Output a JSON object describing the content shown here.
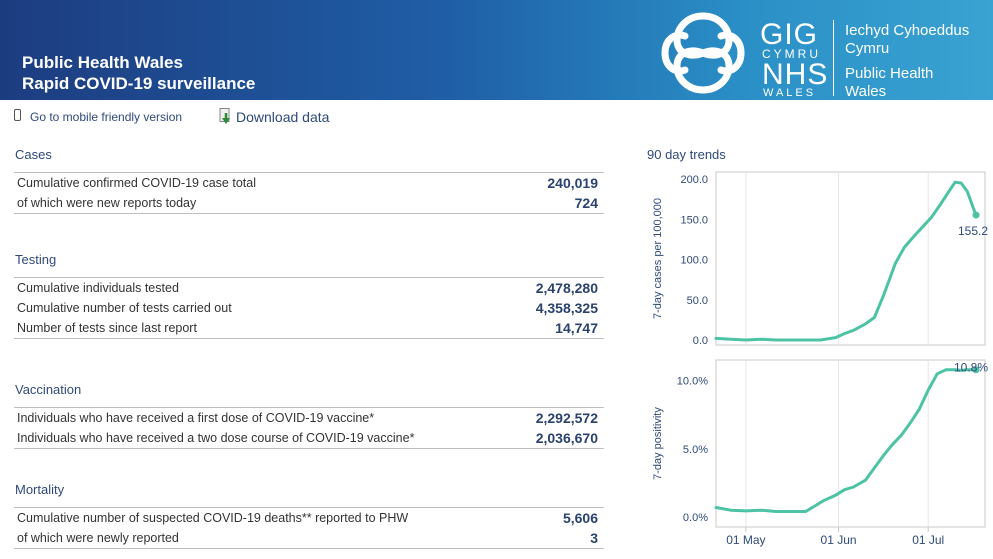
{
  "header": {
    "title_line1": "Public Health Wales",
    "title_line2": "Rapid COVID-19 surveillance",
    "logo": {
      "gig": "GIG",
      "cymru": "CYMRU",
      "nhs": "NHS",
      "wales": "WALES",
      "org_welsh_1": "Iechyd Cyhoeddus",
      "org_welsh_2": "Cymru",
      "org_english_1": "Public Health",
      "org_english_2": "Wales"
    }
  },
  "toplinks": {
    "mobile": "Go to mobile friendly version",
    "download": "Download data"
  },
  "cases": {
    "title": "Cases",
    "rows": [
      {
        "label": "Cumulative confirmed COVID-19 case total",
        "value": "240,019"
      },
      {
        "label": "of which were new reports today",
        "value": "724"
      }
    ]
  },
  "testing": {
    "title": "Testing",
    "rows": [
      {
        "label": "Cumulative individuals tested",
        "value": "2,478,280"
      },
      {
        "label": "Cumulative number of tests carried out",
        "value": "4,358,325"
      },
      {
        "label": "Number of tests since last report",
        "value": "14,747"
      }
    ]
  },
  "vaccination": {
    "title": "Vaccination",
    "rows": [
      {
        "label": "Individuals who have received a first dose of COVID-19 vaccine*",
        "value": "2,292,572"
      },
      {
        "label": "Individuals who have received a two dose course of COVID-19 vaccine*",
        "value": "2,036,670"
      }
    ]
  },
  "mortality": {
    "title": "Mortality",
    "rows": [
      {
        "label": "Cumulative number of suspected COVID-19 deaths** reported to PHW",
        "value": "5,606"
      },
      {
        "label": "of which were newly reported",
        "value": "3"
      }
    ]
  },
  "trends": {
    "title": "90 day trends",
    "line_color": "#4cc3a4"
  },
  "chart_data": [
    {
      "type": "line",
      "ylabel": "7-day cases per 100,000",
      "ylim": [
        0,
        200
      ],
      "yticks": [
        0,
        50,
        100,
        150,
        200
      ],
      "ytick_labels": [
        "0.0",
        "50.0",
        "100.0",
        "150.0",
        "200.0"
      ],
      "x": [
        0,
        5,
        10,
        15,
        20,
        25,
        30,
        35,
        40,
        43,
        46,
        50,
        53,
        56,
        58,
        60,
        63,
        66,
        69,
        72,
        75,
        78,
        80,
        82,
        84,
        85,
        86,
        87
      ],
      "y": [
        2,
        1,
        0,
        1,
        0,
        0,
        0,
        0,
        3,
        8,
        12,
        20,
        28,
        55,
        75,
        95,
        115,
        128,
        140,
        152,
        168,
        185,
        196,
        195,
        185,
        175,
        165,
        155.2
      ],
      "end_label": "155.2",
      "grid": true
    },
    {
      "type": "line",
      "ylabel": "7-day positivity",
      "ylim": [
        0,
        11
      ],
      "yticks": [
        0,
        5,
        10
      ],
      "ytick_labels": [
        "0.0%",
        "5.0%",
        "10.0%"
      ],
      "x": [
        0,
        5,
        10,
        15,
        20,
        25,
        30,
        33,
        36,
        40,
        43,
        46,
        50,
        53,
        56,
        59,
        62,
        65,
        68,
        71,
        74,
        77,
        80,
        82,
        84,
        86,
        87
      ],
      "y": [
        0.7,
        0.5,
        0.45,
        0.5,
        0.4,
        0.4,
        0.4,
        0.8,
        1.2,
        1.6,
        2.0,
        2.2,
        2.7,
        3.6,
        4.5,
        5.3,
        6.0,
        6.9,
        7.9,
        9.3,
        10.5,
        10.8,
        10.8,
        10.75,
        10.8,
        10.8,
        10.8
      ],
      "end_label": "10.8%",
      "grid": true,
      "xtick_labels": [
        "01 May",
        "01 Jun",
        "01 Jul"
      ],
      "xtick_positions": [
        10,
        41,
        71
      ]
    }
  ]
}
